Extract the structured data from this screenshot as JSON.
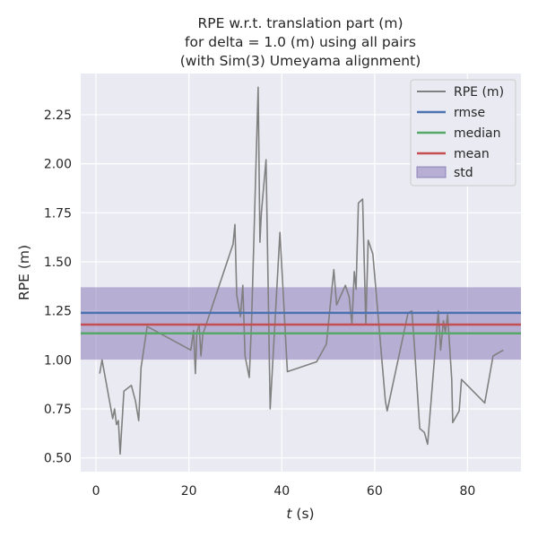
{
  "chart_data": {
    "type": "line",
    "title": [
      "RPE w.r.t. translation part (m)",
      "for delta = 1.0 (m) using all pairs",
      "(with Sim(3) Umeyama alignment)"
    ],
    "xlabel": "t (s)",
    "ylabel": "RPE (m)",
    "xlim": [
      -3.3,
      91.5
    ],
    "ylim": [
      0.43,
      2.46
    ],
    "xticks": [
      0,
      20,
      40,
      60,
      80
    ],
    "yticks": [
      0.5,
      0.75,
      1.0,
      1.25,
      1.5,
      1.75,
      2.0,
      2.25
    ],
    "xtick_labels": [
      "0",
      "20",
      "40",
      "60",
      "80"
    ],
    "ytick_labels": [
      "0.50",
      "0.75",
      "1.00",
      "1.25",
      "1.50",
      "1.75",
      "2.00",
      "2.25"
    ],
    "grid": true,
    "legend_position": "top-right",
    "legend": [
      "RPE (m)",
      "rmse",
      "median",
      "mean",
      "std"
    ],
    "colors": {
      "background": "#eaeaf2",
      "grid": "#ffffff",
      "rpe": "#808080",
      "rmse": "#4c72b0",
      "median": "#55a868",
      "mean": "#c44e52",
      "std": "#8172b3"
    },
    "stats": {
      "rmse": 1.24,
      "median": 1.135,
      "mean": 1.18,
      "std_band": [
        1.0,
        1.37
      ]
    },
    "series": [
      {
        "name": "RPE (m)",
        "x": [
          0.8,
          1.3,
          3.6,
          4.0,
          4.4,
          4.8,
          5.2,
          6.0,
          7.6,
          8.5,
          9.2,
          9.7,
          11.0,
          20.4,
          21.0,
          21.4,
          21.7,
          22.2,
          22.6,
          23.0,
          29.5,
          29.9,
          30.3,
          31.1,
          31.6,
          32.1,
          33.0,
          33.5,
          34.9,
          35.3,
          35.6,
          36.6,
          37.5,
          39.6,
          41.2,
          47.5,
          49.6,
          51.2,
          51.8,
          53.7,
          54.5,
          55.1,
          55.6,
          56.0,
          56.5,
          57.4,
          58.1,
          58.6,
          59.6,
          62.3,
          62.7,
          66.3,
          67.2,
          68.0,
          68.5,
          69.7,
          70.7,
          71.4,
          73.7,
          74.2,
          74.8,
          75.2,
          75.7,
          76.6,
          76.8,
          78.2,
          78.7,
          83.7,
          85.5,
          87.7
        ],
        "y": [
          0.93,
          1.0,
          0.7,
          0.75,
          0.67,
          0.69,
          0.52,
          0.84,
          0.87,
          0.79,
          0.69,
          0.96,
          1.17,
          1.05,
          1.15,
          0.93,
          1.14,
          1.18,
          1.02,
          1.13,
          1.59,
          1.69,
          1.33,
          1.22,
          1.38,
          1.02,
          0.91,
          1.2,
          2.39,
          1.6,
          1.75,
          2.02,
          0.75,
          1.65,
          0.94,
          0.99,
          1.08,
          1.46,
          1.28,
          1.38,
          1.32,
          1.18,
          1.45,
          1.36,
          1.8,
          1.82,
          1.18,
          1.61,
          1.54,
          0.79,
          0.74,
          1.14,
          1.24,
          1.25,
          1.09,
          0.65,
          0.63,
          0.57,
          1.25,
          1.05,
          1.2,
          1.14,
          1.23,
          0.9,
          0.68,
          0.74,
          0.9,
          0.78,
          1.02,
          1.05
        ]
      }
    ]
  }
}
